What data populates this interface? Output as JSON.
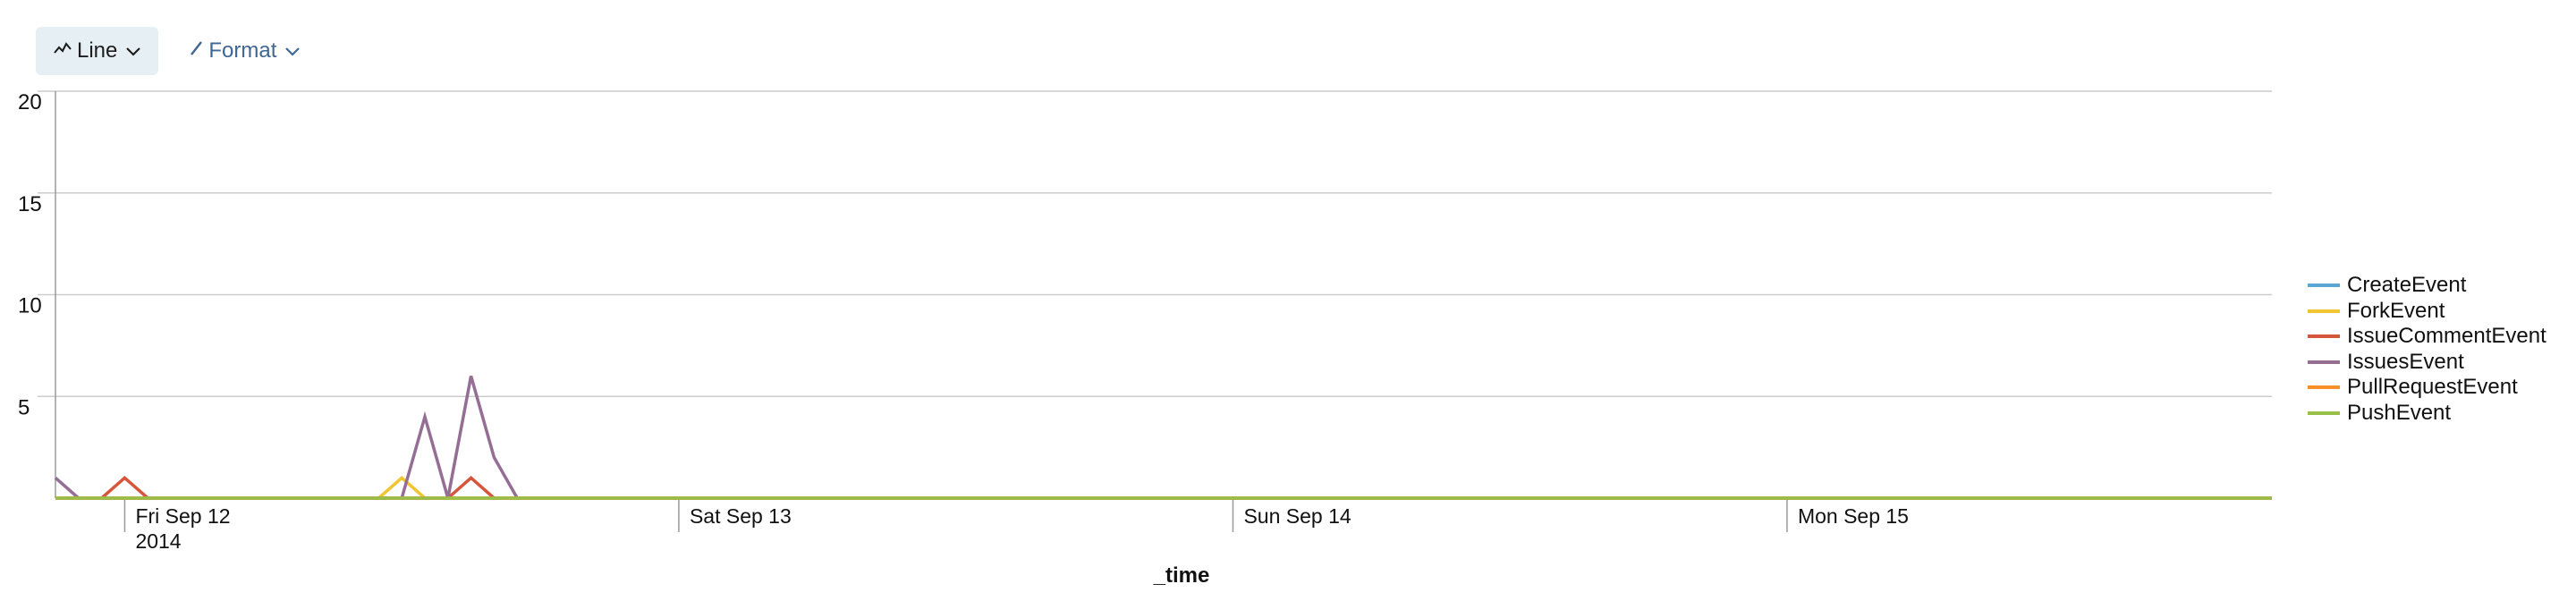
{
  "toolbar": {
    "line_label": "Line",
    "format_label": "Format",
    "line_icon": "line-chart-icon",
    "format_icon": "pencil-icon"
  },
  "chart_data": {
    "type": "line",
    "xlabel": "_time",
    "ylabel": "",
    "ylim": [
      0,
      20
    ],
    "yticks": [
      5,
      10,
      15,
      20
    ],
    "x_start": "2014-09-11T21:00",
    "x_step_hours": 1,
    "x_ticks": [
      {
        "time": "2014-09-12T00:00",
        "label": "Fri Sep 12",
        "label2": "2014"
      },
      {
        "time": "2014-09-13T00:00",
        "label": "Sat Sep 13",
        "label2": ""
      },
      {
        "time": "2014-09-14T00:00",
        "label": "Sun Sep 14",
        "label2": ""
      },
      {
        "time": "2014-09-15T00:00",
        "label": "Mon Sep 15",
        "label2": ""
      }
    ],
    "grid": true,
    "legend_position": "right",
    "series": [
      {
        "name": "CreateEvent",
        "color": "#5aa7d3",
        "values": [
          0,
          0,
          0,
          0,
          0,
          0,
          0,
          0,
          0,
          0,
          0,
          0,
          0,
          0,
          0,
          0,
          0,
          0,
          0,
          0,
          0,
          0,
          0,
          0,
          0,
          0,
          0,
          0,
          0,
          0,
          0,
          0,
          0,
          0,
          0,
          0,
          0,
          0,
          0,
          0,
          0,
          0,
          0,
          0,
          0,
          0,
          0,
          0,
          0,
          0,
          0,
          0,
          0,
          0,
          0,
          0,
          0,
          0,
          0,
          0,
          0,
          0,
          0,
          0,
          0,
          0,
          0,
          0,
          0,
          0,
          0,
          0,
          0,
          0,
          0,
          0,
          0,
          0,
          0,
          0,
          0,
          0,
          0,
          0,
          0,
          0,
          0,
          0,
          0,
          0,
          0,
          0,
          0,
          0,
          0,
          0,
          0
        ]
      },
      {
        "name": "ForkEvent",
        "color": "#f0c531",
        "values": [
          0,
          0,
          0,
          0,
          0,
          0,
          0,
          0,
          0,
          0,
          0,
          0,
          0,
          0,
          0,
          1,
          0,
          0,
          0,
          0,
          0,
          0,
          0,
          0,
          0,
          0,
          0,
          0,
          0,
          0,
          0,
          0,
          0,
          0,
          0,
          0,
          0,
          0,
          0,
          0,
          0,
          0,
          0,
          0,
          0,
          0,
          0,
          0,
          0,
          0,
          0,
          0,
          0,
          0,
          0,
          0,
          0,
          0,
          0,
          0,
          0,
          0,
          0,
          0,
          0,
          0,
          0,
          0,
          0,
          0,
          0,
          0,
          0,
          0,
          0,
          0,
          0,
          0,
          0,
          0,
          0,
          0,
          0,
          0,
          0,
          0,
          0,
          0,
          0,
          0,
          0,
          0,
          0,
          0,
          0,
          0,
          0
        ]
      },
      {
        "name": "IssueCommentEvent",
        "color": "#d6563c",
        "values": [
          0,
          0,
          0,
          1,
          0,
          0,
          0,
          0,
          0,
          0,
          0,
          0,
          0,
          0,
          0,
          0,
          0,
          0,
          1,
          0,
          0,
          0,
          0,
          0,
          0,
          0,
          0,
          0,
          0,
          0,
          0,
          0,
          0,
          0,
          0,
          0,
          0,
          0,
          0,
          0,
          0,
          0,
          0,
          0,
          0,
          0,
          0,
          0,
          0,
          0,
          0,
          0,
          0,
          0,
          0,
          0,
          0,
          0,
          0,
          0,
          0,
          0,
          0,
          0,
          0,
          0,
          0,
          0,
          0,
          0,
          0,
          0,
          0,
          0,
          0,
          0,
          0,
          0,
          0,
          0,
          0,
          0,
          0,
          0,
          0,
          0,
          0,
          0,
          0,
          0,
          0,
          0,
          0,
          0,
          0,
          0,
          0
        ]
      },
      {
        "name": "IssuesEvent",
        "color": "#956e96",
        "values": [
          1,
          0,
          0,
          0,
          0,
          0,
          0,
          0,
          0,
          0,
          0,
          0,
          0,
          0,
          0,
          0,
          4,
          0,
          6,
          2,
          0,
          0,
          0,
          0,
          0,
          0,
          0,
          0,
          0,
          0,
          0,
          0,
          0,
          0,
          0,
          0,
          0,
          0,
          0,
          0,
          0,
          0,
          0,
          0,
          0,
          0,
          0,
          0,
          0,
          0,
          0,
          0,
          0,
          0,
          0,
          0,
          0,
          0,
          0,
          0,
          0,
          0,
          0,
          0,
          0,
          0,
          0,
          0,
          0,
          0,
          0,
          0,
          0,
          0,
          0,
          0,
          0,
          0,
          0,
          0,
          0,
          0,
          0,
          0,
          0,
          0,
          0,
          0,
          0,
          0,
          0,
          0,
          0,
          0,
          0,
          0,
          0
        ]
      },
      {
        "name": "PullRequestEvent",
        "color": "#f7902b",
        "values": [
          0,
          0,
          0,
          0,
          0,
          0,
          0,
          0,
          0,
          0,
          0,
          0,
          0,
          0,
          0,
          0,
          0,
          0,
          0,
          0,
          0,
          0,
          0,
          0,
          0,
          0,
          0,
          0,
          0,
          0,
          0,
          0,
          0,
          0,
          0,
          0,
          0,
          0,
          0,
          0,
          0,
          0,
          0,
          0,
          0,
          0,
          0,
          0,
          0,
          0,
          0,
          0,
          0,
          0,
          0,
          0,
          0,
          0,
          0,
          0,
          0,
          0,
          0,
          0,
          0,
          0,
          0,
          0,
          0,
          0,
          0,
          0,
          0,
          0,
          0,
          0,
          0,
          0,
          0,
          0,
          0,
          0,
          0,
          0,
          0,
          0,
          0,
          0,
          0,
          0,
          0,
          0,
          0,
          0,
          0,
          0,
          0
        ]
      },
      {
        "name": "PushEvent",
        "color": "#98bf47",
        "values": [
          0,
          0,
          0,
          0,
          0,
          0,
          0,
          0,
          0,
          0,
          0,
          0,
          0,
          0,
          0,
          0,
          0,
          0,
          0,
          0,
          0,
          0,
          0,
          0,
          0,
          0,
          0,
          0,
          0,
          0,
          0,
          0,
          0,
          0,
          0,
          0,
          0,
          0,
          0,
          0,
          0,
          0,
          0,
          0,
          0,
          0,
          0,
          0,
          0,
          0,
          0,
          0,
          0,
          0,
          0,
          0,
          0,
          0,
          0,
          0,
          0,
          0,
          0,
          0,
          0,
          0,
          0,
          0,
          0,
          0,
          0,
          0,
          0,
          0,
          0,
          0,
          0,
          0,
          0,
          0,
          0,
          0,
          0,
          0,
          0,
          0,
          0,
          0,
          0,
          0,
          0,
          0,
          0,
          0,
          0,
          0,
          0
        ]
      }
    ]
  }
}
